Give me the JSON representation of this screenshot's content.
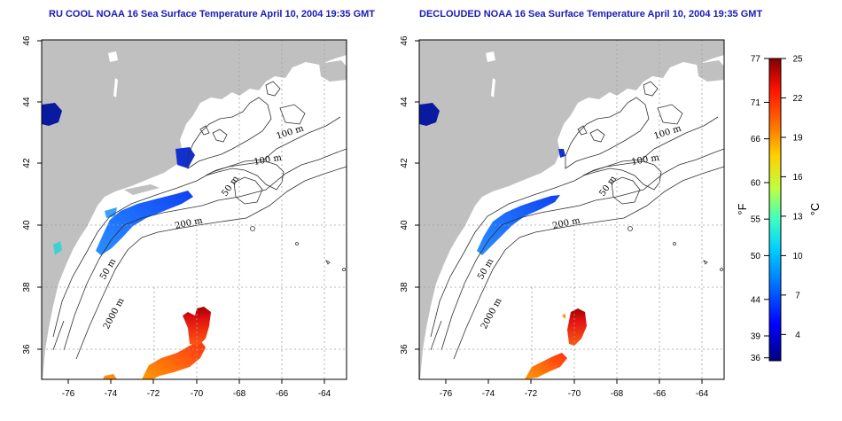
{
  "maps": [
    {
      "title": "RU COOL NOAA 16 Sea Surface Temperature April 10, 2004 19:35 GMT",
      "x_ticks": [
        "-76",
        "-74",
        "-72",
        "-70",
        "-68",
        "-66",
        "-64"
      ],
      "y_ticks": [
        "36",
        "38",
        "40",
        "42",
        "44",
        "46"
      ],
      "contour_labels": [
        "100 m",
        "100 m",
        "50 m",
        "200 m",
        "50 m",
        "2000 m"
      ]
    },
    {
      "title": "DECLOUDED NOAA 16 Sea Surface Temperature April 10, 2004 19:35 GMT",
      "x_ticks": [
        "-76",
        "-74",
        "-72",
        "-70",
        "-68",
        "-66",
        "-64"
      ],
      "y_ticks": [
        "36",
        "38",
        "40",
        "42",
        "44",
        "46"
      ],
      "contour_labels": [
        "100 m",
        "100 m",
        "50 m",
        "200 m",
        "50 m",
        "2000 m"
      ]
    }
  ],
  "colorbar": {
    "fahrenheit_ticks": [
      "77",
      "71",
      "66",
      "60",
      "55",
      "50",
      "44",
      "39",
      "36"
    ],
    "fahrenheit_values": [
      77,
      71,
      66,
      60,
      55,
      50,
      44,
      39,
      36
    ],
    "celsius_ticks": [
      "25",
      "22",
      "19",
      "16",
      "13",
      "10",
      "7",
      "4"
    ],
    "celsius_values": [
      25,
      22,
      19,
      16,
      13,
      10,
      7,
      4
    ],
    "range_celsius": [
      2,
      25
    ],
    "fahrenheit_label": "°F",
    "celsius_label": "°C",
    "colors": [
      "#000080",
      "#0000ff",
      "#0070ff",
      "#00d0ff",
      "#40ffc0",
      "#c0ff40",
      "#ffd000",
      "#ff7000",
      "#ff1000",
      "#800000"
    ]
  },
  "land_color": "#c0c0c0",
  "axis_ranges": {
    "lon": [
      -77,
      -63
    ],
    "lat": [
      35,
      46
    ]
  },
  "grid": "dotted"
}
